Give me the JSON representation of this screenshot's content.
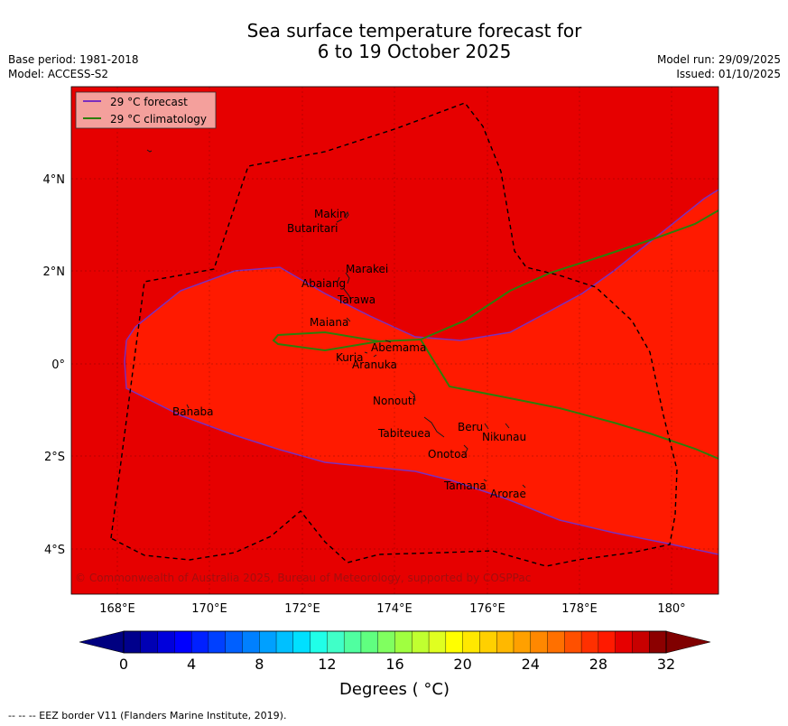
{
  "header": {
    "title_line1": "Sea surface temperature forecast for",
    "title_line2": "6 to 19 October 2025",
    "base_period": "Base period: 1981-2018",
    "model": "Model: ACCESS-S2",
    "model_run": "Model run: 29/09/2025",
    "issued": "Issued: 01/10/2025"
  },
  "legend": {
    "forecast_label": "29 °C  forecast",
    "climatology_label": "29 °C  climatology",
    "forecast_color": "#7b2fbe",
    "climatology_color": "#2e7d0a"
  },
  "map": {
    "lat_labels": [
      "4°N",
      "2°N",
      "0°",
      "2°S",
      "4°S"
    ],
    "lon_labels": [
      "168°E",
      "170°E",
      "172°E",
      "174°E",
      "176°E",
      "178°E",
      "180°"
    ],
    "copyright": "© Commonwealth of Australia 2025, Bureau of Meteorology, supported by COSPPac",
    "warm_color": "#e60000",
    "warmer_color": "#ff1a00",
    "places": {
      "makin": "Makin",
      "butaritari": "Butaritari",
      "marakei": "Marakei",
      "abaiang": "Abaiang",
      "tarawa": "Tarawa",
      "maiana": "Maiana",
      "abemama": "Abemama",
      "kuria": "Kuria",
      "aranuka": "Aranuka",
      "nonouti": "Nonouti",
      "banaba": "Banaba",
      "beru": "Beru",
      "nikunau": "Nikunau",
      "tabiteuea": "Tabiteuea",
      "onotoa": "Onotoa",
      "tamana": "Tamana",
      "arorae": "Arorae"
    }
  },
  "colorbar": {
    "ticks": [
      "0",
      "4",
      "8",
      "12",
      "16",
      "20",
      "24",
      "28",
      "32"
    ],
    "label": "Degrees ( °C)",
    "min": 0,
    "max": 32,
    "step": 1,
    "colors": [
      "#00008c",
      "#0000b4",
      "#0000dc",
      "#0000ff",
      "#0020ff",
      "#0040ff",
      "#0060ff",
      "#0080ff",
      "#00a0ff",
      "#00c0ff",
      "#00e0ff",
      "#20ffe8",
      "#40ffc8",
      "#50ffa0",
      "#60ff80",
      "#80ff60",
      "#a0ff40",
      "#c0ff30",
      "#e0ff20",
      "#ffff00",
      "#ffe800",
      "#ffd000",
      "#ffb800",
      "#ffa000",
      "#ff8800",
      "#ff7000",
      "#ff5000",
      "#ff3000",
      "#ff1a00",
      "#e60000",
      "#c80000",
      "#8c0000"
    ]
  },
  "footer": {
    "note": "--  --  -- EEZ border V11 (Flanders Marine Institute, 2019)."
  }
}
